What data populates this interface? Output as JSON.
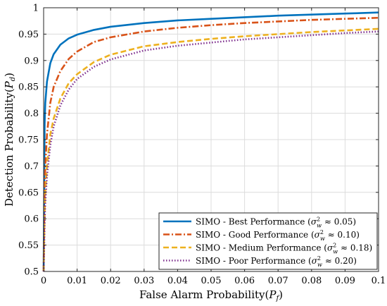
{
  "chart_data": {
    "type": "line",
    "title": "",
    "xlabel": "False Alarm Probability(P_f)",
    "ylabel": "Detection Probability(P_d)",
    "xlim": [
      0,
      0.1
    ],
    "ylim": [
      0.5,
      1
    ],
    "xticks": [
      0,
      0.01,
      0.02,
      0.03,
      0.04,
      0.05,
      0.06,
      0.07,
      0.08,
      0.09,
      0.1
    ],
    "xtick_labels": [
      "0",
      "0.01",
      "0.02",
      "0.03",
      "0.04",
      "0.05",
      "0.06",
      "0.07",
      "0.08",
      "0.09",
      "0.1"
    ],
    "yticks": [
      0.5,
      0.55,
      0.6,
      0.65,
      0.7,
      0.75,
      0.8,
      0.85,
      0.9,
      0.95,
      1
    ],
    "ytick_labels": [
      "0.5",
      "0.55",
      "0.6",
      "0.65",
      "0.7",
      "0.75",
      "0.8",
      "0.85",
      "0.9",
      "0.95",
      "1"
    ],
    "grid": true,
    "legend_position": "bottom-right",
    "x": [
      0,
      0.0003,
      0.0005,
      0.001,
      0.002,
      0.003,
      0.005,
      0.0075,
      0.01,
      0.015,
      0.02,
      0.03,
      0.04,
      0.05,
      0.06,
      0.07,
      0.08,
      0.09,
      0.1
    ],
    "series": [
      {
        "name": "SIMO - Best Performance (σ²_w ≈ 0.05)",
        "color": "#0072BD",
        "dash": "solid",
        "values": [
          0.5,
          0.78,
          0.82,
          0.86,
          0.895,
          0.912,
          0.93,
          0.942,
          0.949,
          0.958,
          0.964,
          0.971,
          0.976,
          0.979,
          0.982,
          0.985,
          0.987,
          0.989,
          0.991
        ]
      },
      {
        "name": "SIMO - Good Performance (σ²_w ≈ 0.10)",
        "color": "#D95319",
        "dash": "dashdot",
        "values": [
          0.5,
          0.65,
          0.7,
          0.76,
          0.82,
          0.85,
          0.88,
          0.903,
          0.917,
          0.935,
          0.944,
          0.955,
          0.962,
          0.967,
          0.971,
          0.974,
          0.977,
          0.979,
          0.981
        ]
      },
      {
        "name": "SIMO - Medium Performance (σ²_w ≈ 0.18)",
        "color": "#EDB120",
        "dash": "dashed",
        "values": [
          0.5,
          0.61,
          0.65,
          0.7,
          0.76,
          0.79,
          0.828,
          0.857,
          0.874,
          0.897,
          0.911,
          0.927,
          0.935,
          0.941,
          0.946,
          0.95,
          0.954,
          0.957,
          0.96
        ]
      },
      {
        "name": "SIMO - Poor Performance (σ²_w ≈ 0.20)",
        "color": "#7E2F8E",
        "dash": "dotted",
        "values": [
          0.5,
          0.59,
          0.63,
          0.68,
          0.74,
          0.775,
          0.815,
          0.845,
          0.865,
          0.888,
          0.902,
          0.919,
          0.928,
          0.934,
          0.94,
          0.944,
          0.948,
          0.952,
          0.955
        ]
      }
    ],
    "legend": [
      {
        "prefix": "SIMO - Best Performance (",
        "value": "0.05"
      },
      {
        "prefix": "SIMO - Good Performance (",
        "value": "0.10"
      },
      {
        "prefix": "SIMO - Medium Performance (",
        "value": "0.18"
      },
      {
        "prefix": "SIMO - Poor Performance (",
        "value": "0.20"
      }
    ]
  }
}
